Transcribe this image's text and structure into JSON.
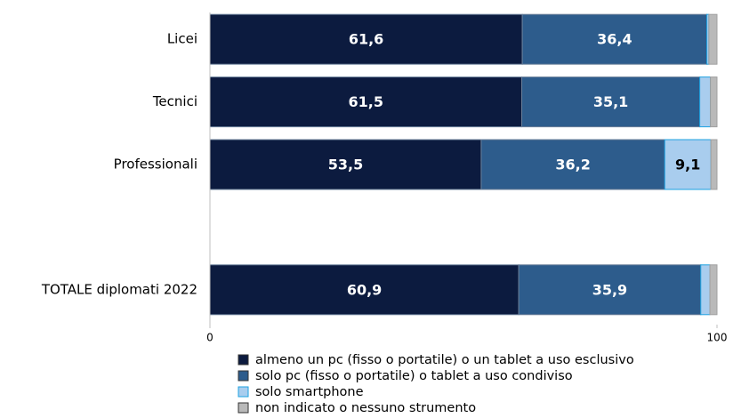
{
  "chart_data": {
    "type": "stacked-barh",
    "categories": [
      "Licei",
      "Tecnici",
      "Professionali",
      null,
      "TOTALE diplomati 2022"
    ],
    "series": [
      {
        "name": "almeno un pc (fisso o portatile) o un tablet a uso esclusivo",
        "color": "#0c1b3f",
        "label_color": "#ffffff",
        "values": [
          61.6,
          61.5,
          53.5,
          null,
          60.9
        ],
        "value_labels": [
          "61,6",
          "61,5",
          "53,5",
          null,
          "60,9"
        ]
      },
      {
        "name": "solo pc (fisso o portatile) o tablet a uso condiviso",
        "color": "#2d5c8c",
        "label_color": "#ffffff",
        "values": [
          36.4,
          35.1,
          36.2,
          null,
          35.9
        ],
        "value_labels": [
          "36,4",
          "35,1",
          "36,2",
          null,
          "35,9"
        ]
      },
      {
        "name": "solo smartphone",
        "color": "#a9cdee",
        "label_color": "#000000",
        "values": [
          0.4,
          2.1,
          9.1,
          null,
          1.8
        ],
        "value_labels": [
          null,
          null,
          "9,1",
          null,
          null
        ]
      },
      {
        "name": "non indicato o nessuno strumento",
        "color": "#b9b9b9",
        "values": [
          1.6,
          1.3,
          1.2,
          null,
          1.4
        ]
      }
    ],
    "xlim": [
      0,
      100
    ],
    "xticks": [
      0,
      100
    ],
    "grid": false,
    "legend": "bottom"
  }
}
